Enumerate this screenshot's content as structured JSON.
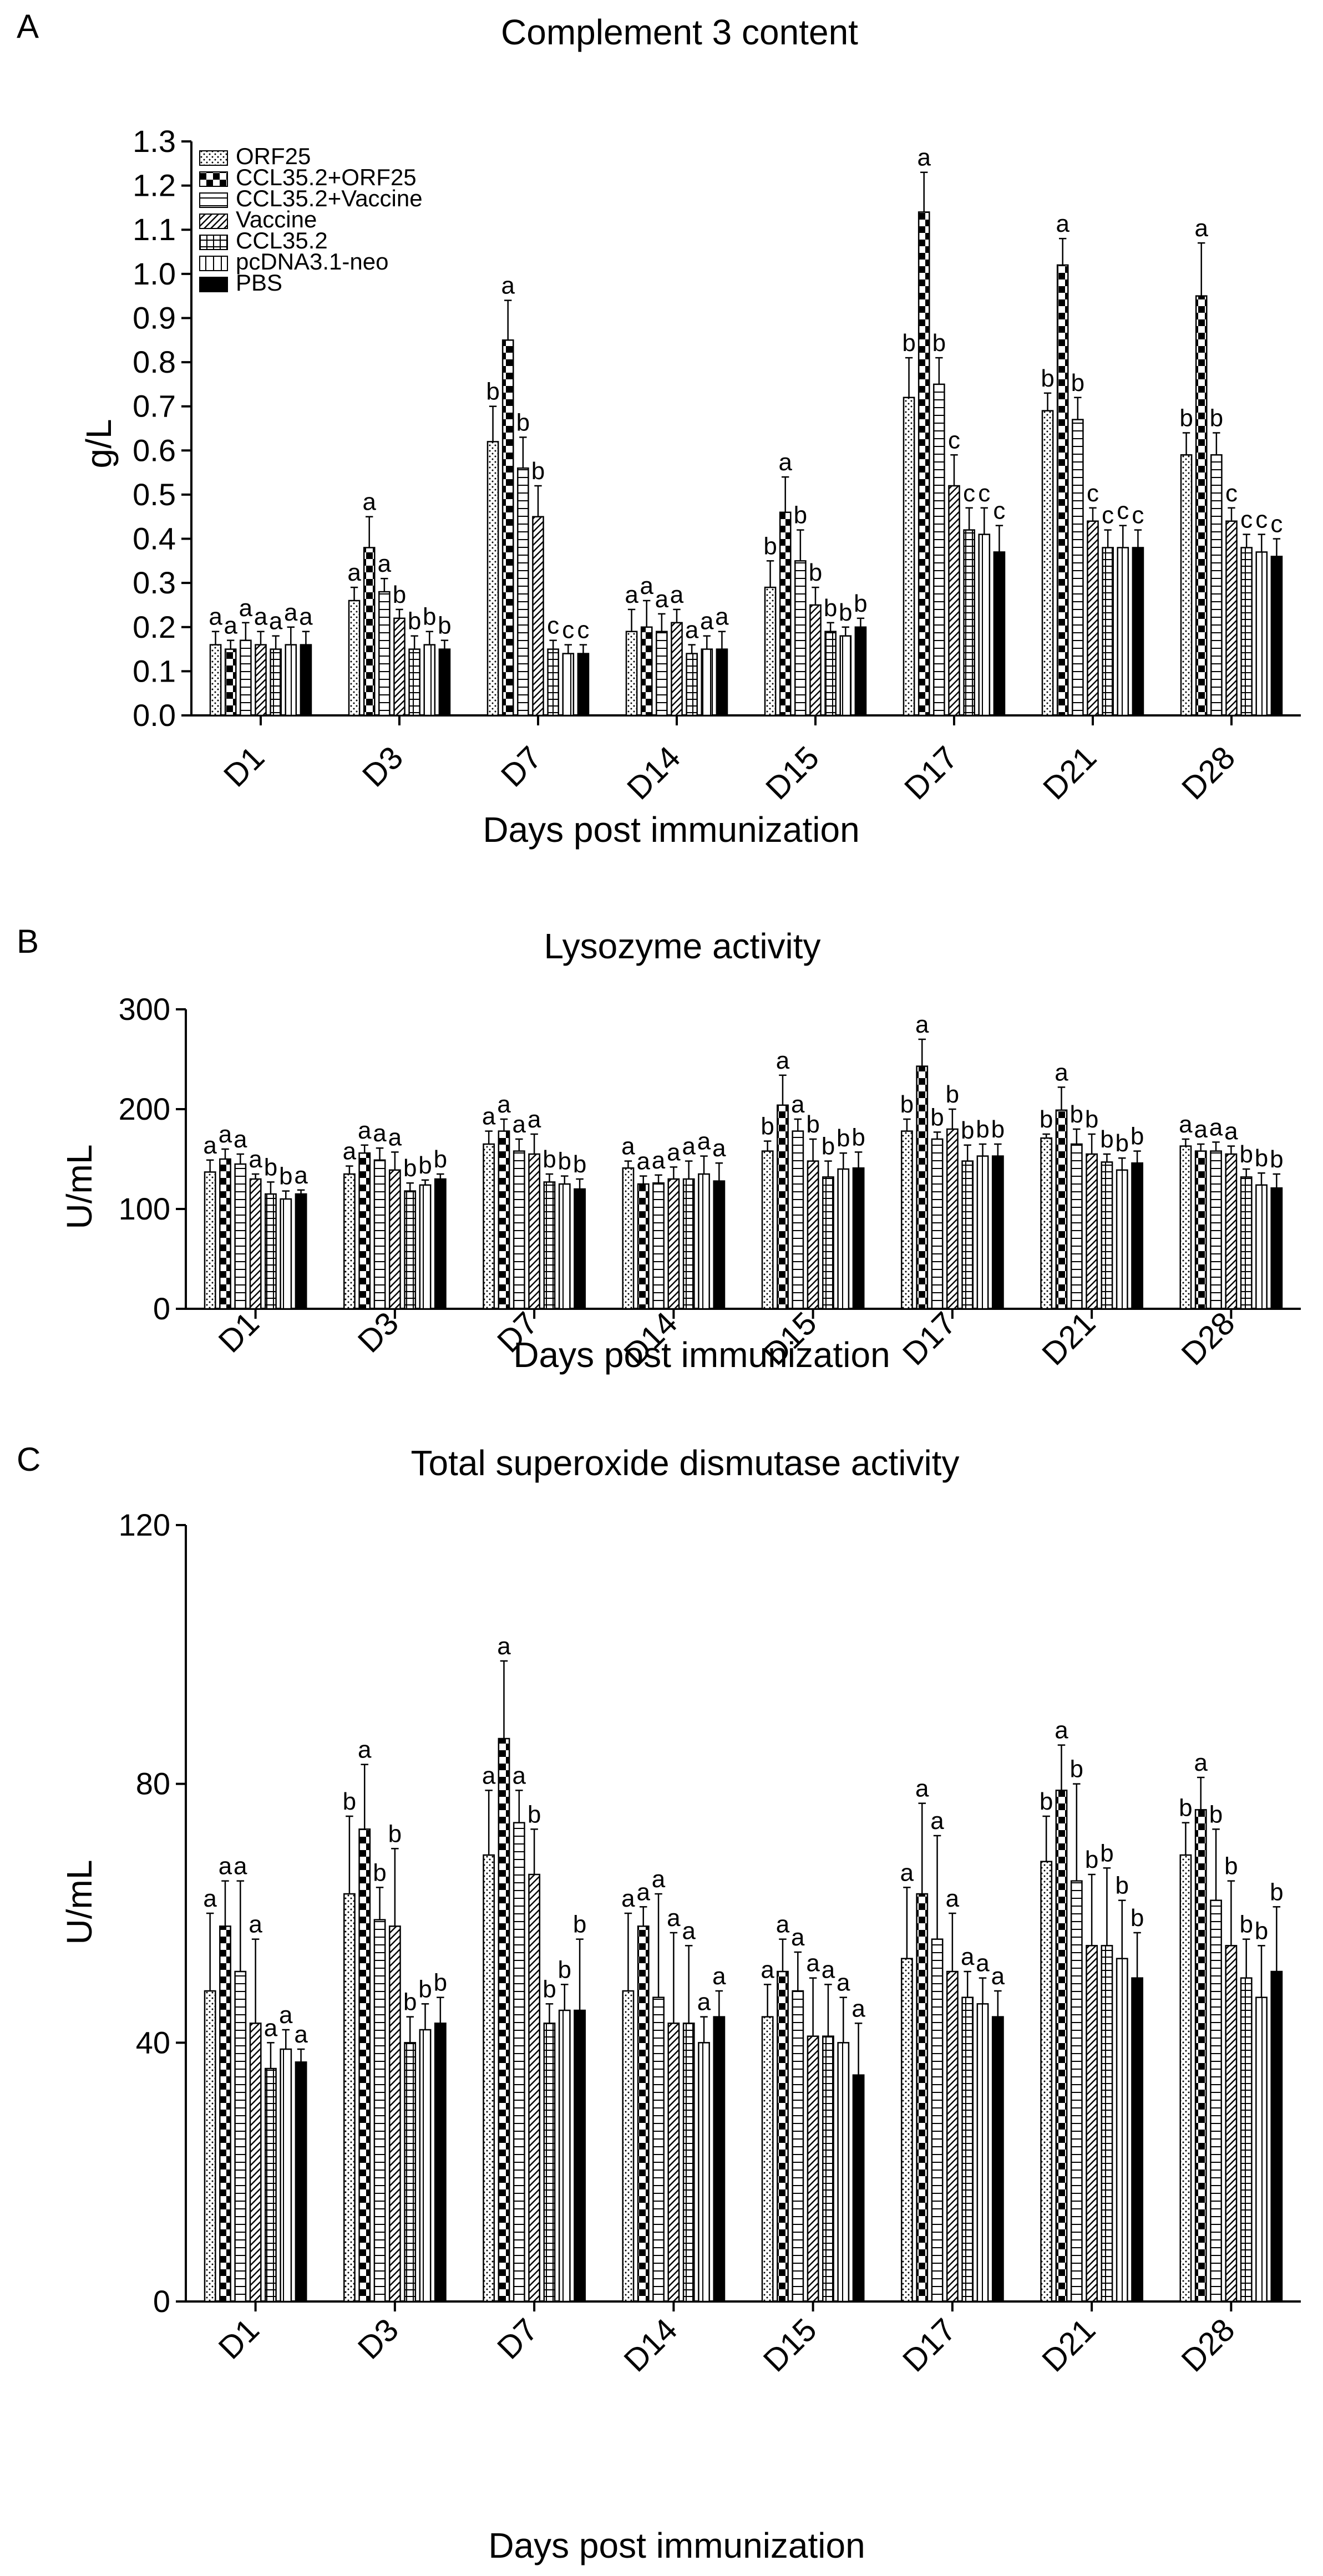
{
  "legend": {
    "items": [
      {
        "name": "ORF25",
        "pattern": "dots"
      },
      {
        "name": "CCL35.2+ORF25",
        "pattern": "checker"
      },
      {
        "name": "CCL35.2+Vaccine",
        "pattern": "hlines"
      },
      {
        "name": "Vaccine",
        "pattern": "diag"
      },
      {
        "name": "CCL35.2",
        "pattern": "grid"
      },
      {
        "name": "pcDNA3.1-neo",
        "pattern": "vlines"
      },
      {
        "name": "PBS",
        "pattern": "solid"
      }
    ]
  },
  "chart_data": [
    {
      "panel": "A",
      "type": "bar",
      "title": "Complement 3 content",
      "xlabel": "Days post immunization",
      "ylabel": "g/L",
      "ylim": [
        0,
        1.3
      ],
      "yticks": [
        "0.0",
        "0.1",
        "0.2",
        "0.3",
        "0.4",
        "0.5",
        "0.6",
        "0.7",
        "0.8",
        "0.9",
        "1.0",
        "1.1",
        "1.2",
        "1.3"
      ],
      "categories": [
        "D1",
        "D3",
        "D7",
        "D14",
        "D15",
        "D17",
        "D21",
        "D28"
      ],
      "series": [
        {
          "name": "ORF25",
          "values": [
            0.16,
            0.26,
            0.62,
            0.19,
            0.29,
            0.72,
            0.69,
            0.59
          ],
          "errors": [
            0.03,
            0.03,
            0.08,
            0.05,
            0.06,
            0.09,
            0.04,
            0.05
          ],
          "labels": [
            "a",
            "a",
            "b",
            "a",
            "b",
            "b",
            "b",
            "b"
          ]
        },
        {
          "name": "CCL35.2+ORF25",
          "values": [
            0.15,
            0.38,
            0.85,
            0.2,
            0.46,
            1.14,
            1.02,
            0.95
          ],
          "errors": [
            0.02,
            0.07,
            0.09,
            0.06,
            0.08,
            0.09,
            0.06,
            0.12
          ],
          "labels": [
            "a",
            "a",
            "a",
            "a",
            "a",
            "a",
            "a",
            "a"
          ]
        },
        {
          "name": "CCL35.2+Vaccine",
          "values": [
            0.17,
            0.28,
            0.56,
            0.19,
            0.35,
            0.75,
            0.67,
            0.59
          ],
          "errors": [
            0.04,
            0.03,
            0.07,
            0.04,
            0.07,
            0.06,
            0.05,
            0.05
          ],
          "labels": [
            "a",
            "a",
            "b",
            "a",
            "b",
            "b",
            "b",
            "b"
          ]
        },
        {
          "name": "Vaccine",
          "values": [
            0.16,
            0.22,
            0.45,
            0.21,
            0.25,
            0.52,
            0.44,
            0.44
          ],
          "errors": [
            0.03,
            0.02,
            0.07,
            0.03,
            0.04,
            0.07,
            0.03,
            0.03
          ],
          "labels": [
            "a",
            "b",
            "b",
            "a",
            "b",
            "c",
            "c",
            "c"
          ]
        },
        {
          "name": "CCL35.2",
          "values": [
            0.15,
            0.15,
            0.15,
            0.14,
            0.19,
            0.42,
            0.38,
            0.38
          ],
          "errors": [
            0.03,
            0.03,
            0.02,
            0.02,
            0.02,
            0.05,
            0.04,
            0.03
          ],
          "labels": [
            "a",
            "b",
            "c",
            "a",
            "b",
            "c",
            "c",
            "c"
          ]
        },
        {
          "name": "pcDNA3.1-neo",
          "values": [
            0.16,
            0.16,
            0.14,
            0.15,
            0.18,
            0.41,
            0.38,
            0.37
          ],
          "errors": [
            0.04,
            0.03,
            0.02,
            0.03,
            0.02,
            0.06,
            0.05,
            0.04
          ],
          "labels": [
            "a",
            "b",
            "c",
            "a",
            "b",
            "c",
            "c",
            "c"
          ]
        },
        {
          "name": "PBS",
          "values": [
            0.16,
            0.15,
            0.14,
            0.15,
            0.2,
            0.37,
            0.38,
            0.36
          ],
          "errors": [
            0.03,
            0.02,
            0.02,
            0.04,
            0.02,
            0.06,
            0.04,
            0.04
          ],
          "labels": [
            "a",
            "b",
            "c",
            "a",
            "b",
            "c",
            "c",
            "c"
          ]
        }
      ]
    },
    {
      "panel": "B",
      "type": "bar",
      "title": "Lysozyme activity",
      "xlabel": "Days post immunization",
      "ylabel": "U/mL",
      "ylim": [
        0,
        300
      ],
      "yticks": [
        "0",
        "100",
        "200",
        "300"
      ],
      "categories": [
        "D1",
        "D3",
        "D7",
        "D14",
        "D15",
        "D17",
        "D21",
        "D28"
      ],
      "series": [
        {
          "name": "ORF25",
          "values": [
            137,
            135,
            165,
            141,
            158,
            178,
            171,
            163
          ],
          "errors": [
            12,
            8,
            13,
            7,
            10,
            12,
            4,
            7
          ],
          "labels": [
            "a",
            "a",
            "a",
            "a",
            "b",
            "b",
            "b",
            "a"
          ]
        },
        {
          "name": "CCL35.2+ORF25",
          "values": [
            150,
            156,
            178,
            125,
            204,
            243,
            199,
            158
          ],
          "errors": [
            10,
            8,
            12,
            8,
            30,
            27,
            23,
            7
          ],
          "labels": [
            "a",
            "a",
            "a",
            "a",
            "a",
            "a",
            "a",
            "a"
          ]
        },
        {
          "name": "CCL35.2+Vaccine",
          "values": [
            145,
            149,
            158,
            126,
            178,
            170,
            165,
            158
          ],
          "errors": [
            10,
            12,
            12,
            8,
            12,
            7,
            15,
            9
          ],
          "labels": [
            "a",
            "a",
            "a",
            "a",
            "a",
            "b",
            "b",
            "a"
          ]
        },
        {
          "name": "Vaccine",
          "values": [
            130,
            139,
            155,
            130,
            148,
            180,
            155,
            155
          ],
          "errors": [
            5,
            18,
            20,
            12,
            22,
            20,
            20,
            8
          ],
          "labels": [
            "a",
            "a",
            "a",
            "a",
            "b",
            "b",
            "b",
            "a"
          ]
        },
        {
          "name": "CCL35.2",
          "values": [
            115,
            118,
            127,
            130,
            132,
            148,
            147,
            132
          ],
          "errors": [
            12,
            8,
            8,
            18,
            16,
            16,
            8,
            8
          ],
          "labels": [
            "b",
            "b",
            "b",
            "a",
            "b",
            "b",
            "b",
            "b"
          ]
        },
        {
          "name": "pcDNA3.1-neo",
          "values": [
            110,
            124,
            125,
            135,
            140,
            153,
            139,
            124
          ],
          "errors": [
            8,
            5,
            8,
            18,
            16,
            12,
            12,
            12
          ],
          "labels": [
            "b",
            "b",
            "b",
            "a",
            "b",
            "b",
            "b",
            "b"
          ]
        },
        {
          "name": "PBS",
          "values": [
            115,
            130,
            120,
            128,
            141,
            153,
            146,
            121
          ],
          "errors": [
            4,
            5,
            10,
            18,
            16,
            12,
            12,
            14
          ],
          "labels": [
            "a",
            "b",
            "b",
            "a",
            "b",
            "b",
            "b",
            "b"
          ]
        }
      ]
    },
    {
      "panel": "C",
      "type": "bar",
      "title": "Total superoxide dismutase activity",
      "xlabel": "Days post immunization",
      "ylabel": "U/mL",
      "ylim": [
        0,
        120
      ],
      "yticks": [
        "0",
        "40",
        "80",
        "120"
      ],
      "categories": [
        "D1",
        "D3",
        "D7",
        "D14",
        "D15",
        "D17",
        "D21",
        "D28"
      ],
      "series": [
        {
          "name": "ORF25",
          "values": [
            48,
            63,
            69,
            48,
            44,
            53,
            68,
            69
          ],
          "errors": [
            12,
            12,
            10,
            12,
            5,
            11,
            7,
            5
          ],
          "labels": [
            "a",
            "b",
            "a",
            "a",
            "a",
            "a",
            "b",
            "b"
          ]
        },
        {
          "name": "CCL35.2+ORF25",
          "values": [
            58,
            73,
            87,
            58,
            51,
            63,
            79,
            76
          ],
          "errors": [
            7,
            10,
            12,
            3,
            5,
            14,
            7,
            5
          ],
          "labels": [
            "a",
            "a",
            "a",
            "a",
            "a",
            "a",
            "a",
            "a"
          ]
        },
        {
          "name": "CCL35.2+Vaccine",
          "values": [
            51,
            59,
            74,
            47,
            48,
            56,
            65,
            62
          ],
          "errors": [
            14,
            5,
            5,
            16,
            6,
            16,
            15,
            11
          ],
          "labels": [
            "a",
            "b",
            "a",
            "a",
            "a",
            "a",
            "b",
            "b"
          ]
        },
        {
          "name": "Vaccine",
          "values": [
            43,
            58,
            66,
            43,
            41,
            51,
            55,
            55
          ],
          "errors": [
            13,
            12,
            7,
            14,
            9,
            9,
            11,
            10
          ],
          "labels": [
            "a",
            "b",
            "b",
            "a",
            "a",
            "a",
            "b",
            "b"
          ]
        },
        {
          "name": "CCL35.2",
          "values": [
            36,
            40,
            43,
            43,
            41,
            47,
            55,
            50
          ],
          "errors": [
            4,
            4,
            3,
            12,
            8,
            4,
            12,
            6
          ],
          "labels": [
            "a",
            "b",
            "b",
            "a",
            "a",
            "a",
            "b",
            "b"
          ]
        },
        {
          "name": "pcDNA3.1-neo",
          "values": [
            39,
            42,
            45,
            40,
            40,
            46,
            53,
            47
          ],
          "errors": [
            3,
            4,
            4,
            4,
            7,
            4,
            9,
            8
          ],
          "labels": [
            "a",
            "b",
            "b",
            "a",
            "a",
            "a",
            "b",
            "b"
          ]
        },
        {
          "name": "PBS",
          "values": [
            37,
            43,
            45,
            44,
            35,
            44,
            50,
            51
          ],
          "errors": [
            2,
            4,
            11,
            4,
            8,
            4,
            7,
            10
          ],
          "labels": [
            "a",
            "b",
            "b",
            "a",
            "a",
            "a",
            "b",
            "b"
          ]
        }
      ]
    }
  ]
}
